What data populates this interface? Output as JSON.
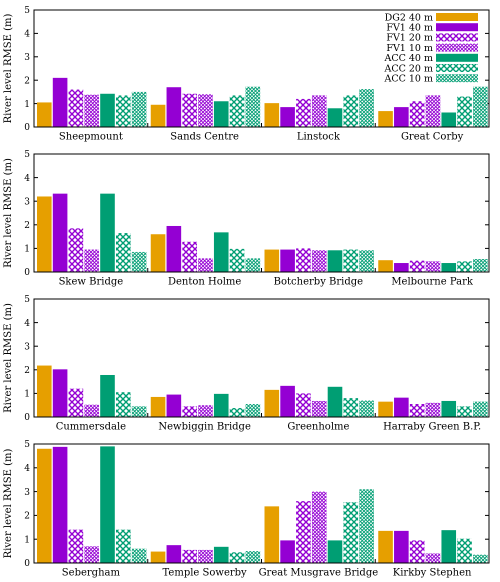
{
  "colors": {
    "DG2 40 m": "#e69f00",
    "FV1": "#9400d3",
    "ACC": "#009e73"
  },
  "series_styles": [
    {
      "name": "DG2 40 m",
      "fill": "solid",
      "color": "#e69f00"
    },
    {
      "name": "FV1 40 m",
      "fill": "solid",
      "color": "#9400d3"
    },
    {
      "name": "FV1 20 m",
      "fill": "crosshatch",
      "color": "#9400d3"
    },
    {
      "name": "FV1 10 m",
      "fill": "dense-crosshatch",
      "color": "#9400d3"
    },
    {
      "name": "ACC 40 m",
      "fill": "solid",
      "color": "#009e73"
    },
    {
      "name": "ACC 20 m",
      "fill": "crosshatch",
      "color": "#009e73"
    },
    {
      "name": "ACC 10 m",
      "fill": "dense-crosshatch",
      "color": "#009e73"
    }
  ],
  "chart_data": [
    {
      "type": "bar",
      "ylabel": "River level RMSE (m)",
      "ylim": [
        0,
        5
      ],
      "yticks": [
        0,
        1,
        2,
        3,
        4,
        5
      ],
      "legend": "top-right",
      "categories": [
        "Sheepmount",
        "Sands Centre",
        "Linstock",
        "Great Corby"
      ],
      "series": [
        {
          "name": "DG2 40 m",
          "values": [
            1.05,
            0.95,
            1.02,
            0.68
          ]
        },
        {
          "name": "FV1 40 m",
          "values": [
            2.1,
            1.7,
            0.85,
            0.85
          ]
        },
        {
          "name": "FV1 20 m",
          "values": [
            1.6,
            1.42,
            1.2,
            1.1
          ]
        },
        {
          "name": "FV1 10 m",
          "values": [
            1.38,
            1.4,
            1.35,
            1.35
          ]
        },
        {
          "name": "ACC 40 m",
          "values": [
            1.42,
            1.1,
            0.8,
            0.62
          ]
        },
        {
          "name": "ACC 20 m",
          "values": [
            1.35,
            1.35,
            1.35,
            1.3
          ]
        },
        {
          "name": "ACC 10 m",
          "values": [
            1.5,
            1.72,
            1.62,
            1.72
          ]
        }
      ]
    },
    {
      "type": "bar",
      "ylabel": "River level RMSE (m)",
      "ylim": [
        0,
        5
      ],
      "yticks": [
        0,
        1,
        2,
        3,
        4,
        5
      ],
      "categories": [
        "Skew Bridge",
        "Denton Holme",
        "Botcherby Bridge",
        "Melbourne Park"
      ],
      "series": [
        {
          "name": "DG2 40 m",
          "values": [
            3.2,
            1.6,
            0.95,
            0.5
          ]
        },
        {
          "name": "FV1 40 m",
          "values": [
            3.32,
            1.95,
            0.95,
            0.38
          ]
        },
        {
          "name": "FV1 20 m",
          "values": [
            1.85,
            1.28,
            1.0,
            0.48
          ]
        },
        {
          "name": "FV1 10 m",
          "values": [
            0.95,
            0.58,
            0.92,
            0.45
          ]
        },
        {
          "name": "ACC 40 m",
          "values": [
            3.32,
            1.68,
            0.92,
            0.38
          ]
        },
        {
          "name": "ACC 20 m",
          "values": [
            1.65,
            0.98,
            0.95,
            0.45
          ]
        },
        {
          "name": "ACC 10 m",
          "values": [
            0.85,
            0.58,
            0.92,
            0.55
          ]
        }
      ]
    },
    {
      "type": "bar",
      "ylabel": "River level RMSE (m)",
      "ylim": [
        0,
        5
      ],
      "yticks": [
        0,
        1,
        2,
        3,
        4,
        5
      ],
      "categories": [
        "Cummersdale",
        "Newbiggin Bridge",
        "Greenholme",
        "Harraby Green B.P."
      ],
      "series": [
        {
          "name": "DG2 40 m",
          "values": [
            2.18,
            0.85,
            1.15,
            0.65
          ]
        },
        {
          "name": "FV1 40 m",
          "values": [
            2.02,
            0.95,
            1.32,
            0.82
          ]
        },
        {
          "name": "FV1 20 m",
          "values": [
            1.2,
            0.45,
            1.0,
            0.55
          ]
        },
        {
          "name": "FV1 10 m",
          "values": [
            0.52,
            0.5,
            0.68,
            0.6
          ]
        },
        {
          "name": "ACC 40 m",
          "values": [
            1.78,
            0.98,
            1.28,
            0.68
          ]
        },
        {
          "name": "ACC 20 m",
          "values": [
            1.05,
            0.38,
            0.8,
            0.45
          ]
        },
        {
          "name": "ACC 10 m",
          "values": [
            0.45,
            0.55,
            0.7,
            0.65
          ]
        }
      ]
    },
    {
      "type": "bar",
      "ylabel": "River level RMSE (m)",
      "ylim": [
        0,
        5
      ],
      "yticks": [
        0,
        1,
        2,
        3,
        4,
        5
      ],
      "categories": [
        "Sebergham",
        "Temple Sowerby",
        "Great Musgrave Bridge",
        "Kirkby Stephen"
      ],
      "series": [
        {
          "name": "DG2 40 m",
          "values": [
            4.8,
            0.48,
            2.38,
            1.35
          ]
        },
        {
          "name": "FV1 40 m",
          "values": [
            4.88,
            0.75,
            0.95,
            1.35
          ]
        },
        {
          "name": "FV1 20 m",
          "values": [
            1.4,
            0.55,
            2.6,
            0.95
          ]
        },
        {
          "name": "FV1 10 m",
          "values": [
            0.7,
            0.55,
            3.0,
            0.4
          ]
        },
        {
          "name": "ACC 40 m",
          "values": [
            4.9,
            0.68,
            0.95,
            1.38
          ]
        },
        {
          "name": "ACC 20 m",
          "values": [
            1.4,
            0.45,
            2.55,
            1.02
          ]
        },
        {
          "name": "ACC 10 m",
          "values": [
            0.6,
            0.5,
            3.1,
            0.35
          ]
        }
      ]
    }
  ]
}
